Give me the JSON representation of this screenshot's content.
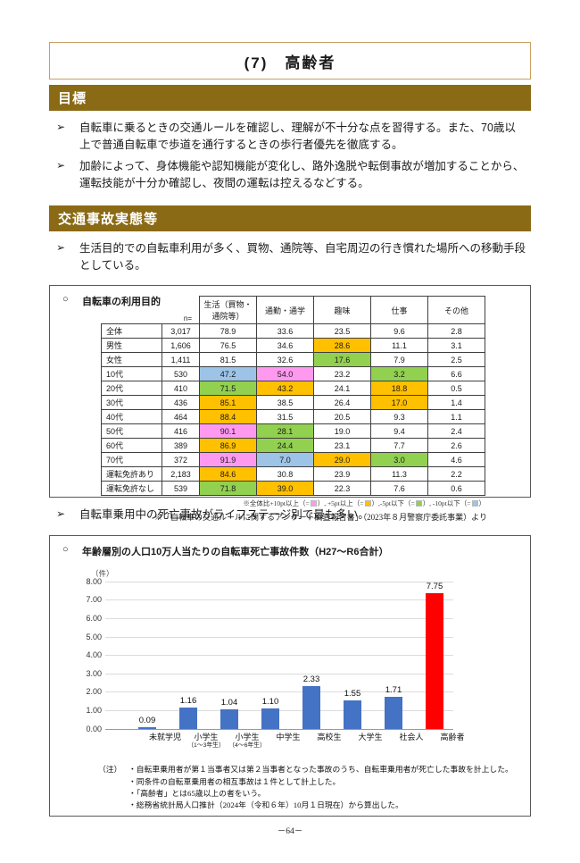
{
  "page": {
    "title": "(7)　高齢者",
    "page_number": "－64－"
  },
  "bullet_marker": "➢",
  "sections": {
    "goal_header": "目標",
    "accident_header": "交通事故実態等"
  },
  "goals": [
    "自転車に乗るときの交通ルールを確認し、理解が不十分な点を習得する。また、70歳以上で普通自転車で歩道を通行するときの歩行者優先を徹底する。",
    "加齢によって、身体機能や認知機能が変化し、路外逸脱や転倒事故が増加することから、運転技能が十分か確認し、夜間の運転は控えるなどする。"
  ],
  "accident_bullets": {
    "usage": "生活目的での自転車利用が多く、買物、通院等、自宅周辺の行き慣れた場所への移動手段としている。",
    "fatal": "自転車乗用中の死亡事故がライフステージ別で最も多い。"
  },
  "usage_table": {
    "marker": "○",
    "title": "自転車の利用目的",
    "n_header": "n=",
    "col_headers": [
      "生活（買物・\n通院等）",
      "通勤・通学",
      "趣味",
      "仕事",
      "その他"
    ],
    "rows": [
      {
        "label": "全体",
        "n": "3,017",
        "cells": [
          {
            "v": "78.9",
            "hl": ""
          },
          {
            "v": "33.6",
            "hl": ""
          },
          {
            "v": "23.5",
            "hl": ""
          },
          {
            "v": "9.6",
            "hl": ""
          },
          {
            "v": "2.8",
            "hl": ""
          }
        ]
      },
      {
        "label": "男性",
        "n": "1,606",
        "cells": [
          {
            "v": "76.5",
            "hl": ""
          },
          {
            "v": "34.6",
            "hl": ""
          },
          {
            "v": "28.6",
            "hl": "orange"
          },
          {
            "v": "11.1",
            "hl": ""
          },
          {
            "v": "3.1",
            "hl": ""
          }
        ]
      },
      {
        "label": "女性",
        "n": "1,411",
        "cells": [
          {
            "v": "81.5",
            "hl": ""
          },
          {
            "v": "32.6",
            "hl": ""
          },
          {
            "v": "17.6",
            "hl": "green"
          },
          {
            "v": "7.9",
            "hl": ""
          },
          {
            "v": "2.5",
            "hl": ""
          }
        ]
      },
      {
        "label": "10代",
        "n": "530",
        "cells": [
          {
            "v": "47.2",
            "hl": "blue"
          },
          {
            "v": "54.0",
            "hl": "pink"
          },
          {
            "v": "23.2",
            "hl": ""
          },
          {
            "v": "3.2",
            "hl": "green"
          },
          {
            "v": "6.6",
            "hl": ""
          }
        ]
      },
      {
        "label": "20代",
        "n": "410",
        "cells": [
          {
            "v": "71.5",
            "hl": "green"
          },
          {
            "v": "43.2",
            "hl": "orange"
          },
          {
            "v": "24.1",
            "hl": ""
          },
          {
            "v": "18.8",
            "hl": "orange"
          },
          {
            "v": "0.5",
            "hl": ""
          }
        ]
      },
      {
        "label": "30代",
        "n": "436",
        "cells": [
          {
            "v": "85.1",
            "hl": "orange"
          },
          {
            "v": "38.5",
            "hl": ""
          },
          {
            "v": "26.4",
            "hl": ""
          },
          {
            "v": "17.0",
            "hl": "orange"
          },
          {
            "v": "1.4",
            "hl": ""
          }
        ]
      },
      {
        "label": "40代",
        "n": "464",
        "cells": [
          {
            "v": "88.4",
            "hl": "orange"
          },
          {
            "v": "31.5",
            "hl": ""
          },
          {
            "v": "20.5",
            "hl": ""
          },
          {
            "v": "9.3",
            "hl": ""
          },
          {
            "v": "1.1",
            "hl": ""
          }
        ]
      },
      {
        "label": "50代",
        "n": "416",
        "cells": [
          {
            "v": "90.1",
            "hl": "pink"
          },
          {
            "v": "28.1",
            "hl": "green"
          },
          {
            "v": "19.0",
            "hl": ""
          },
          {
            "v": "9.4",
            "hl": ""
          },
          {
            "v": "2.4",
            "hl": ""
          }
        ]
      },
      {
        "label": "60代",
        "n": "389",
        "cells": [
          {
            "v": "86.9",
            "hl": "orange"
          },
          {
            "v": "24.4",
            "hl": "green"
          },
          {
            "v": "23.1",
            "hl": ""
          },
          {
            "v": "7.7",
            "hl": ""
          },
          {
            "v": "2.6",
            "hl": ""
          }
        ]
      },
      {
        "label": "70代",
        "n": "372",
        "cells": [
          {
            "v": "91.9",
            "hl": "pink"
          },
          {
            "v": "7.0",
            "hl": "blue"
          },
          {
            "v": "29.0",
            "hl": "orange"
          },
          {
            "v": "3.0",
            "hl": "green"
          },
          {
            "v": "4.6",
            "hl": ""
          }
        ]
      },
      {
        "label": "運転免許あり",
        "n": "2,183",
        "cells": [
          {
            "v": "84.6",
            "hl": "orange"
          },
          {
            "v": "30.8",
            "hl": ""
          },
          {
            "v": "23.9",
            "hl": ""
          },
          {
            "v": "11.3",
            "hl": ""
          },
          {
            "v": "2.2",
            "hl": ""
          }
        ]
      },
      {
        "label": "運転免許なし",
        "n": "539",
        "cells": [
          {
            "v": "71.8",
            "hl": "green"
          },
          {
            "v": "39.0",
            "hl": "orange"
          },
          {
            "v": "22.3",
            "hl": ""
          },
          {
            "v": "7.6",
            "hl": ""
          },
          {
            "v": "0.6",
            "hl": ""
          }
        ]
      }
    ],
    "legend_parts": [
      {
        "text": "※全体比+10pt以上（="
      },
      {
        "chip": "hl_pink"
      },
      {
        "text": "）, +5pt以上（="
      },
      {
        "chip": "hl_orange"
      },
      {
        "text": "）,-5pt以下（="
      },
      {
        "chip": "hl_green"
      },
      {
        "text": "）, -10pt以下（="
      },
      {
        "chip": "hl_blue"
      },
      {
        "text": "）"
      }
    ],
    "source": "※「自転車の交通ルールに関するアンケート調査報告書」（2023年８月警察庁委託事業）より"
  },
  "chart_data": {
    "type": "bar",
    "marker": "○",
    "title": "年齢層別の人口10万人当たりの自転車死亡事故件数（H27～R6合計）",
    "unit_label": "（件）",
    "categories": [
      {
        "label": "未就学児",
        "sub": ""
      },
      {
        "label": "小学生",
        "sub": "（1～3年生）"
      },
      {
        "label": "小学生",
        "sub": "（4～6年生）"
      },
      {
        "label": "中学生",
        "sub": ""
      },
      {
        "label": "高校生",
        "sub": ""
      },
      {
        "label": "大学生",
        "sub": ""
      },
      {
        "label": "社会人",
        "sub": ""
      },
      {
        "label": "高齢者",
        "sub": ""
      }
    ],
    "values": [
      0.09,
      1.16,
      1.04,
      1.1,
      2.33,
      1.55,
      1.71,
      7.75
    ],
    "value_labels": [
      "0.09",
      "1.16",
      "1.04",
      "1.10",
      "2.33",
      "1.55",
      "1.71",
      "7.75"
    ],
    "bar_color_keys": [
      "bar_blue",
      "bar_blue",
      "bar_blue",
      "bar_blue",
      "bar_blue",
      "bar_blue",
      "bar_blue",
      "bar_red"
    ],
    "ylim": [
      0,
      8
    ],
    "ytick_step": 1,
    "grid": true,
    "legend_position": "none"
  },
  "chart_notes": {
    "label": "（注）",
    "lines": [
      "・自転車乗用者が第１当事者又は第２当事者となった事故のうち、自転車乗用者が死亡した事故を計上した。",
      "・同条件の自転車乗用者の相互事故は１件として計上した。",
      "・「高齢者」とは65歳以上の者をいう。",
      "・総務省統計局人口推計（2024年（令和６年）10月１日現在）から算出した。"
    ]
  },
  "colors": {
    "section_bg": "#8a6a15",
    "title_border": "#c8a063",
    "hl_pink": "#ff99f0",
    "hl_orange": "#ffc000",
    "hl_green": "#92d050",
    "hl_blue": "#9dc3e6",
    "bar_blue": "#4472c4",
    "bar_red": "#ff0000"
  }
}
